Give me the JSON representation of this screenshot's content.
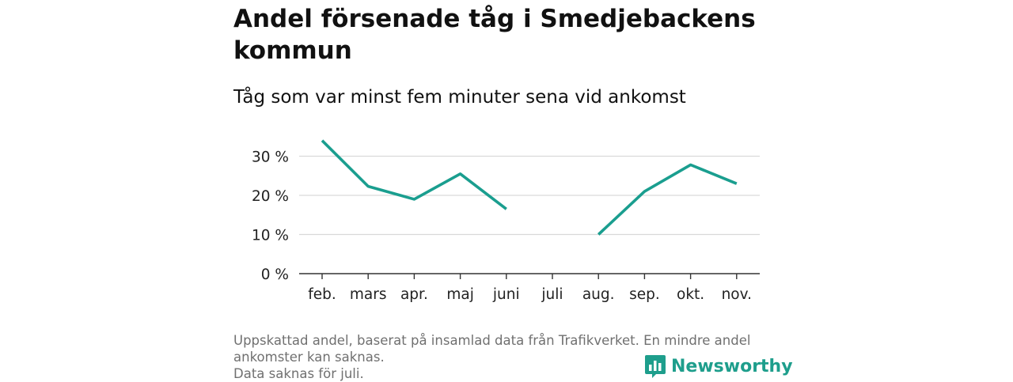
{
  "title": "Andel försenade tåg i Smedjebackens kommun",
  "subtitle": "Tåg som var minst fem minuter sena vid ankomst",
  "footnote": {
    "line1": "Uppskattad andel, baserat på insamlad data från Trafikverket. En mindre andel",
    "line2": "ankomster kan saknas.",
    "line3": "Data saknas för juli."
  },
  "brand": {
    "name": "Newsworthy",
    "color": "#1e9e8c",
    "icon": "bar-chart-speech-bubble-icon"
  },
  "chart_data": {
    "type": "line",
    "categories": [
      "feb.",
      "mars",
      "apr.",
      "maj",
      "juni",
      "juli",
      "aug.",
      "sep.",
      "okt.",
      "nov."
    ],
    "series": [
      {
        "values": [
          34,
          22.3,
          19,
          25.5,
          16.5,
          null,
          10,
          21,
          27.8,
          23
        ]
      }
    ],
    "ylim": [
      0,
      35
    ],
    "yticks": [
      0,
      10,
      20,
      30
    ],
    "ytick_labels": [
      "0 %",
      "10 %",
      "20 %",
      "30 %"
    ],
    "grid": true,
    "line_color": "#1a9e8f"
  }
}
